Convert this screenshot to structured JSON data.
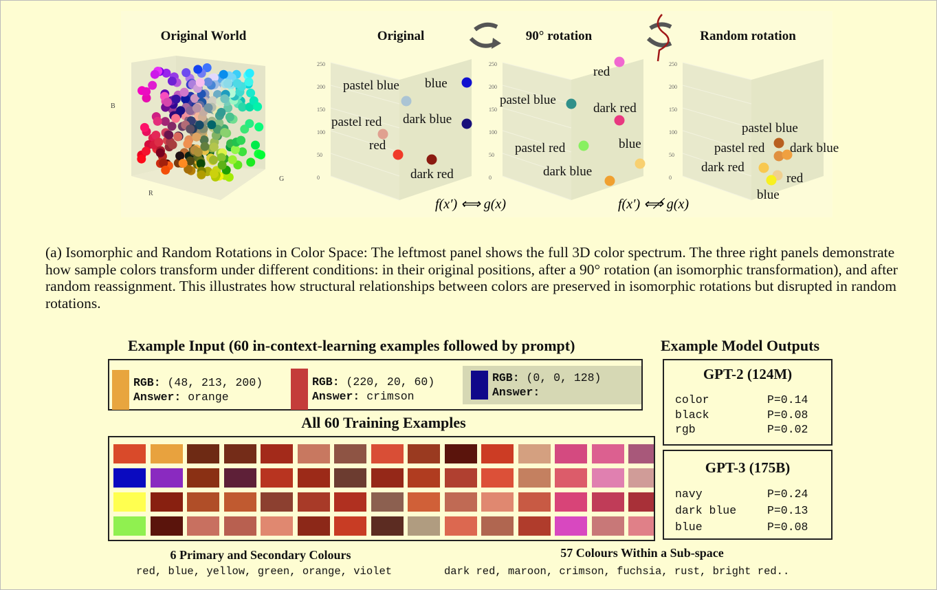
{
  "panels": {
    "original_world": "Original World",
    "original": "Original",
    "rotation90": "90° rotation",
    "random": "Random rotation"
  },
  "axes": {
    "b": "B",
    "r": "R",
    "g": "G",
    "ticks": [
      "250",
      "200",
      "150",
      "100",
      "50",
      "0"
    ]
  },
  "plot_original": {
    "labels": [
      "pastel blue",
      "blue",
      "pastel red",
      "dark blue",
      "red",
      "dark red"
    ]
  },
  "plot_90": {
    "labels": [
      "red",
      "pastel blue",
      "dark red",
      "pastel red",
      "blue",
      "dark blue"
    ]
  },
  "plot_random": {
    "labels": [
      "pastel blue",
      "pastel red",
      "dark blue",
      "dark red",
      "red",
      "blue"
    ]
  },
  "relations": {
    "equiv": "f(x′) ⟺ g(x)",
    "not_equiv": "f(x′) ⟺̸ g(x)"
  },
  "caption": "(a) Isomorphic and Random Rotations in Color Space: The leftmost panel shows the full 3D color spectrum. The three right panels demonstrate how sample colors transform under different conditions: in their original positions, after a 90° rotation (an isomorphic transformation), and after random reassignment. This illustrates how structural relationships between colors are preserved in isomorphic rotations but disrupted in random rotations.",
  "input": {
    "title": "Example Input (60 in-context-learning examples followed by prompt)",
    "examples": [
      {
        "rgb_label": "RGB:",
        "rgb": "(48, 213, 200)",
        "answer_label": "Answer:",
        "answer": "orange",
        "color": "#e8a53e"
      },
      {
        "rgb_label": "RGB:",
        "rgb": "(220, 20, 60)",
        "answer_label": "Answer:",
        "answer": "crimson",
        "color": "#c43c3a"
      },
      {
        "rgb_label": "RGB:",
        "rgb": "(0, 0, 128)",
        "answer_label": "Answer:",
        "answer": "",
        "color": "#10088a"
      }
    ]
  },
  "training": {
    "title": "All 60 Training Examples",
    "colors": [
      "#d94a2a",
      "#e8a23e",
      "#6e2a14",
      "#742c18",
      "#a32a1a",
      "#c87860",
      "#8e5444",
      "#d94e36",
      "#9a3a20",
      "#5a140c",
      "#cc3c24",
      "#d4a080",
      "#d44a80",
      "#dc6090",
      "#a8587a",
      "#0a0ac0",
      "#8a2ac0",
      "#8a3014",
      "#5e2038",
      "#b83420",
      "#9c2a18",
      "#6c3c30",
      "#952818",
      "#b03c20",
      "#b04030",
      "#dc5038",
      "#c48060",
      "#dc5c6a",
      "#e080b0",
      "#d09c98",
      "#ffff50",
      "#882010",
      "#b04e28",
      "#c05a30",
      "#8c4030",
      "#a83a28",
      "#b03020",
      "#8c6050",
      "#d06038",
      "#c06a54",
      "#e08870",
      "#c85a44",
      "#d84478",
      "#c03c58",
      "#a83038",
      "#90f050",
      "#5a140c",
      "#c87060",
      "#b86050",
      "#e08870",
      "#8c2818",
      "#c83c24",
      "#5c2c22",
      "#b09c80",
      "#dc6850",
      "#b06650",
      "#b03c2c",
      "#d848c0",
      "#c87878",
      "#e08088"
    ]
  },
  "outputs": {
    "title": "Example Model Outputs",
    "models": [
      {
        "name": "GPT-2 (124M)",
        "rows": [
          {
            "token": "color",
            "p": "P=0.14"
          },
          {
            "token": "black",
            "p": "P=0.08"
          },
          {
            "token": "rgb",
            "p": "P=0.02"
          }
        ]
      },
      {
        "name": "GPT-3 (175B)",
        "rows": [
          {
            "token": "navy",
            "p": "P=0.24"
          },
          {
            "token": "dark blue",
            "p": "P=0.13"
          },
          {
            "token": "blue",
            "p": "P=0.08"
          }
        ]
      }
    ]
  },
  "bottom": {
    "primary_title": "6 Primary and Secondary Colours",
    "primary_list": "red, blue, yellow, green, orange, violet",
    "sub_title": "57 Colours Within a Sub-space",
    "sub_list": "dark red, maroon, crimson, fuchsia, rust, bright red.."
  }
}
